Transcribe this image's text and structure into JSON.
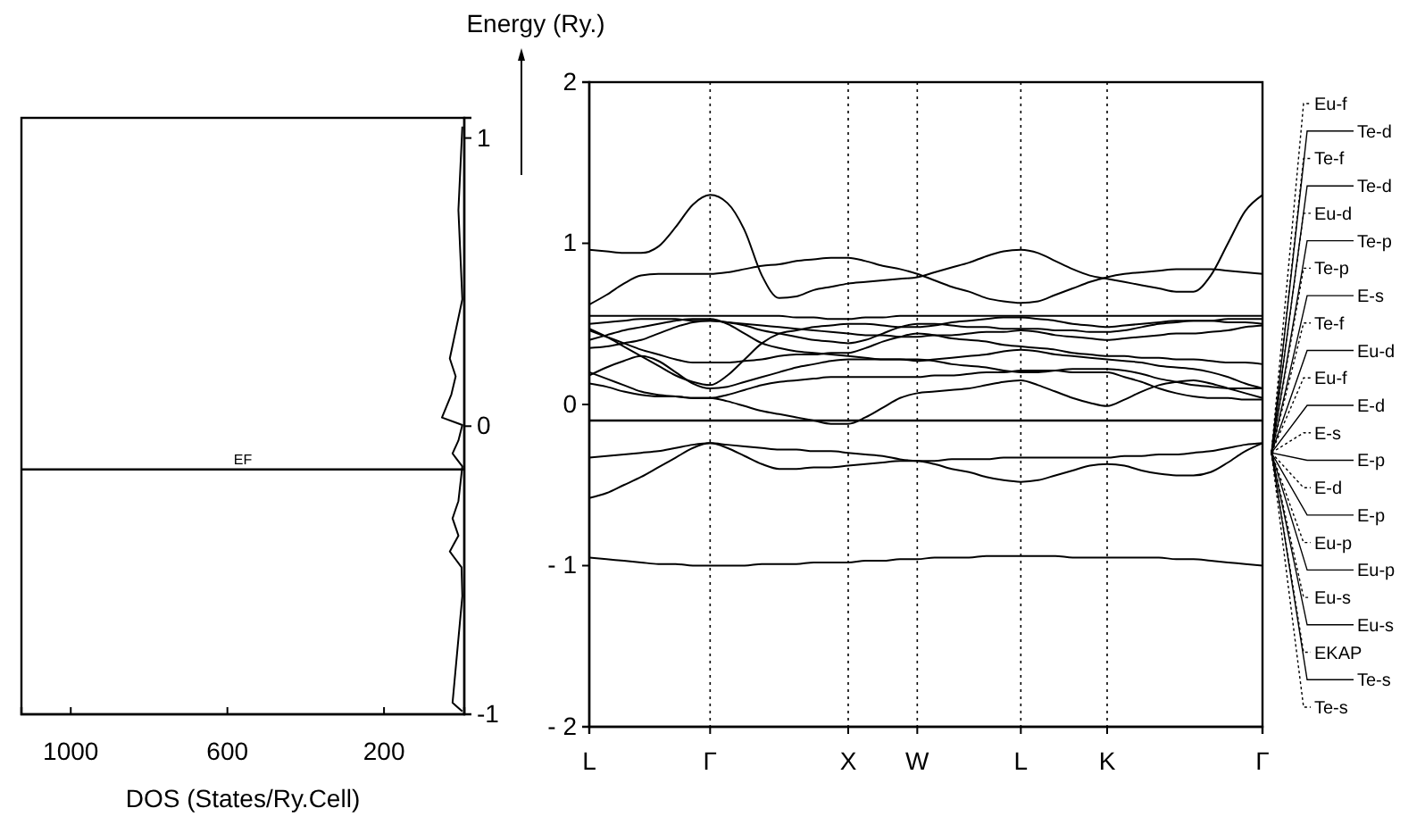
{
  "chart_data": [
    {
      "type": "line",
      "xlabel": "DOS (States/Ry.Cell)",
      "ylabel": "Energy (Ry.)",
      "xlim": [
        1126,
        -5
      ],
      "xticks": [
        1000,
        600,
        200
      ],
      "ylim": [
        -1,
        1.07
      ],
      "yticks": [
        -1,
        0,
        1
      ],
      "series": [
        {
          "color": "#000000",
          "x": [
            0,
            10,
            0,
            32,
            17,
            28,
            52,
            0,
            10,
            25,
            0,
            10,
            25,
            10,
            32,
            2,
            0,
            25,
            0
          ],
          "values": [
            1.04,
            0.75,
            0.44,
            0.235,
            0.173,
            0.11,
            0.03,
            0.004,
            -0.05,
            -0.095,
            -0.14,
            -0.26,
            -0.32,
            -0.38,
            -0.435,
            -0.49,
            -0.59,
            -0.96,
            -0.99
          ]
        }
      ],
      "ref_lines": [
        {
          "axis": "y",
          "value": -0.15,
          "label": "EF"
        }
      ]
    },
    {
      "type": "line",
      "categories": [
        "L",
        null,
        null,
        null,
        null,
        null,
        null,
        "Γ",
        null,
        null,
        null,
        null,
        null,
        null,
        null,
        "X",
        null,
        null,
        null,
        "W",
        null,
        null,
        null,
        null,
        null,
        "L",
        null,
        null,
        null,
        null,
        "K",
        null,
        null,
        null,
        null,
        null,
        null,
        null,
        null,
        "Γ"
      ],
      "ylim": [
        -2,
        2
      ],
      "yticks": [
        {
          "value": -2,
          "label": "- 2"
        },
        {
          "value": -1,
          "label": "- 1"
        },
        0,
        1,
        2
      ],
      "grid": "x",
      "series": [
        {
          "color": "#000000",
          "values": [
            -0.95,
            -0.96,
            -0.97,
            -0.98,
            -0.99,
            -0.99,
            -1.0,
            -1.0,
            -1.0,
            -1.0,
            -0.99,
            -0.99,
            -0.99,
            -0.98,
            -0.98,
            -0.98,
            -0.97,
            -0.97,
            -0.96,
            -0.96,
            -0.95,
            -0.95,
            -0.95,
            -0.94,
            -0.94,
            -0.94,
            -0.94,
            -0.94,
            -0.95,
            -0.95,
            -0.95,
            -0.95,
            -0.95,
            -0.95,
            -0.96,
            -0.96,
            -0.97,
            -0.98,
            -0.99,
            -1.0
          ]
        },
        {
          "color": "#000000",
          "values": [
            -0.33,
            -0.32,
            -0.31,
            -0.3,
            -0.29,
            -0.27,
            -0.25,
            -0.24,
            -0.25,
            -0.26,
            -0.27,
            -0.28,
            -0.28,
            -0.29,
            -0.29,
            -0.3,
            -0.31,
            -0.32,
            -0.34,
            -0.35,
            -0.35,
            -0.34,
            -0.34,
            -0.34,
            -0.33,
            -0.33,
            -0.33,
            -0.33,
            -0.33,
            -0.33,
            -0.33,
            -0.32,
            -0.32,
            -0.31,
            -0.31,
            -0.3,
            -0.29,
            -0.27,
            -0.25,
            -0.24
          ]
        },
        {
          "color": "#000000",
          "values": [
            -0.58,
            -0.55,
            -0.5,
            -0.45,
            -0.39,
            -0.33,
            -0.27,
            -0.24,
            -0.27,
            -0.32,
            -0.37,
            -0.4,
            -0.4,
            -0.39,
            -0.39,
            -0.38,
            -0.37,
            -0.36,
            -0.35,
            -0.35,
            -0.37,
            -0.4,
            -0.42,
            -0.45,
            -0.47,
            -0.48,
            -0.47,
            -0.44,
            -0.41,
            -0.38,
            -0.37,
            -0.38,
            -0.41,
            -0.43,
            -0.44,
            -0.44,
            -0.42,
            -0.36,
            -0.29,
            -0.24
          ]
        },
        {
          "color": "#000000",
          "values": [
            0.96,
            0.95,
            0.94,
            0.94,
            0.98,
            1.1,
            1.24,
            1.3,
            1.25,
            1.08,
            0.8,
            0.66,
            0.67,
            0.71,
            0.73,
            0.75,
            0.76,
            0.77,
            0.78,
            0.79,
            0.82,
            0.85,
            0.88,
            0.92,
            0.95,
            0.96,
            0.94,
            0.89,
            0.84,
            0.8,
            0.78,
            0.76,
            0.74,
            0.72,
            0.7,
            0.7,
            0.8,
            1.0,
            1.2,
            1.3
          ]
        },
        {
          "color": "#000000",
          "values": [
            0.62,
            0.68,
            0.75,
            0.8,
            0.81,
            0.81,
            0.81,
            0.81,
            0.82,
            0.84,
            0.86,
            0.87,
            0.89,
            0.9,
            0.91,
            0.91,
            0.89,
            0.86,
            0.84,
            0.81,
            0.77,
            0.73,
            0.7,
            0.66,
            0.64,
            0.63,
            0.64,
            0.68,
            0.72,
            0.76,
            0.79,
            0.81,
            0.82,
            0.83,
            0.84,
            0.84,
            0.84,
            0.83,
            0.82,
            0.81
          ]
        },
        {
          "color": "#000000",
          "values": [
            0.55,
            0.55,
            0.55,
            0.55,
            0.55,
            0.55,
            0.55,
            0.55,
            0.55,
            0.55,
            0.55,
            0.55,
            0.54,
            0.54,
            0.53,
            0.53,
            0.54,
            0.54,
            0.55,
            0.55,
            0.55,
            0.55,
            0.55,
            0.55,
            0.55,
            0.55,
            0.55,
            0.55,
            0.55,
            0.55,
            0.55,
            0.55,
            0.55,
            0.55,
            0.55,
            0.55,
            0.55,
            0.55,
            0.55,
            0.55
          ]
        },
        {
          "color": "#000000",
          "values": [
            0.5,
            0.51,
            0.52,
            0.53,
            0.53,
            0.53,
            0.52,
            0.52,
            0.51,
            0.49,
            0.46,
            0.44,
            0.42,
            0.4,
            0.39,
            0.38,
            0.4,
            0.44,
            0.48,
            0.5,
            0.5,
            0.49,
            0.48,
            0.48,
            0.47,
            0.47,
            0.47,
            0.46,
            0.46,
            0.45,
            0.45,
            0.46,
            0.48,
            0.5,
            0.51,
            0.52,
            0.52,
            0.51,
            0.51,
            0.5
          ]
        },
        {
          "color": "#000000",
          "values": [
            0.46,
            0.42,
            0.38,
            0.34,
            0.31,
            0.28,
            0.26,
            0.26,
            0.26,
            0.27,
            0.28,
            0.3,
            0.31,
            0.31,
            0.32,
            0.32,
            0.35,
            0.39,
            0.42,
            0.44,
            0.43,
            0.41,
            0.4,
            0.39,
            0.37,
            0.36,
            0.35,
            0.34,
            0.32,
            0.31,
            0.3,
            0.3,
            0.29,
            0.29,
            0.28,
            0.28,
            0.27,
            0.26,
            0.26,
            0.25
          ]
        },
        {
          "color": "#000000",
          "values": [
            0.35,
            0.36,
            0.38,
            0.4,
            0.44,
            0.48,
            0.51,
            0.52,
            0.51,
            0.5,
            0.49,
            0.48,
            0.47,
            0.46,
            0.45,
            0.44,
            0.43,
            0.43,
            0.42,
            0.42,
            0.43,
            0.43,
            0.44,
            0.45,
            0.45,
            0.46,
            0.45,
            0.43,
            0.42,
            0.41,
            0.4,
            0.41,
            0.42,
            0.43,
            0.44,
            0.44,
            0.45,
            0.46,
            0.48,
            0.49
          ]
        },
        {
          "color": "#000000",
          "values": [
            0.18,
            0.23,
            0.27,
            0.3,
            0.27,
            0.2,
            0.13,
            0.1,
            0.11,
            0.14,
            0.17,
            0.2,
            0.23,
            0.25,
            0.27,
            0.28,
            0.28,
            0.28,
            0.28,
            0.28,
            0.27,
            0.25,
            0.24,
            0.23,
            0.21,
            0.2,
            0.2,
            0.21,
            0.22,
            0.22,
            0.22,
            0.21,
            0.19,
            0.16,
            0.14,
            0.12,
            0.11,
            0.1,
            0.1,
            0.1
          ]
        },
        {
          "color": "#000000",
          "values": [
            0.13,
            0.11,
            0.08,
            0.06,
            0.05,
            0.05,
            0.04,
            0.04,
            0.02,
            -0.01,
            -0.04,
            -0.06,
            -0.08,
            -0.1,
            -0.12,
            -0.12,
            -0.08,
            -0.02,
            0.04,
            0.07,
            0.08,
            0.09,
            0.1,
            0.12,
            0.14,
            0.15,
            0.12,
            0.08,
            0.04,
            0.01,
            -0.01,
            0.03,
            0.08,
            0.12,
            0.14,
            0.15,
            0.13,
            0.1,
            0.07,
            0.04
          ]
        },
        {
          "color": "#000000",
          "values": [
            0.2,
            0.16,
            0.12,
            0.08,
            0.06,
            0.05,
            0.04,
            0.04,
            0.06,
            0.09,
            0.12,
            0.14,
            0.15,
            0.16,
            0.17,
            0.17,
            0.17,
            0.17,
            0.17,
            0.17,
            0.18,
            0.18,
            0.19,
            0.2,
            0.2,
            0.21,
            0.21,
            0.21,
            0.2,
            0.2,
            0.2,
            0.17,
            0.14,
            0.1,
            0.07,
            0.05,
            0.04,
            0.04,
            0.03,
            0.03
          ]
        },
        {
          "color": "#000000",
          "values": [
            0.47,
            0.42,
            0.36,
            0.3,
            0.24,
            0.18,
            0.14,
            0.12,
            0.18,
            0.28,
            0.38,
            0.44,
            0.46,
            0.48,
            0.49,
            0.5,
            0.5,
            0.49,
            0.48,
            0.48,
            0.49,
            0.51,
            0.52,
            0.53,
            0.54,
            0.54,
            0.53,
            0.52,
            0.5,
            0.49,
            0.48,
            0.49,
            0.5,
            0.51,
            0.52,
            0.52,
            0.52,
            0.53,
            0.53,
            0.53
          ]
        },
        {
          "color": "#000000",
          "values": [
            0.4,
            0.43,
            0.46,
            0.48,
            0.5,
            0.52,
            0.53,
            0.53,
            0.5,
            0.44,
            0.38,
            0.35,
            0.33,
            0.32,
            0.31,
            0.3,
            0.29,
            0.28,
            0.28,
            0.27,
            0.28,
            0.29,
            0.3,
            0.31,
            0.33,
            0.34,
            0.33,
            0.31,
            0.3,
            0.29,
            0.28,
            0.27,
            0.26,
            0.24,
            0.23,
            0.22,
            0.2,
            0.17,
            0.13,
            0.1
          ]
        }
      ],
      "ref_lines": [
        {
          "axis": "y",
          "value": -0.1
        }
      ],
      "annotations": [
        "Eu-f",
        "Te-d",
        "Te-f",
        "Te-d",
        "Eu-d",
        "Te-p",
        "Te-p",
        "E-s",
        "Te-f",
        "Eu-d",
        "Eu-f",
        "E-d",
        "E-s",
        "E-p",
        "E-d",
        "E-p",
        "Eu-p",
        "Eu-p",
        "Eu-s",
        "Eu-s",
        "EKAP",
        "Te-s",
        "Te-s"
      ]
    }
  ]
}
